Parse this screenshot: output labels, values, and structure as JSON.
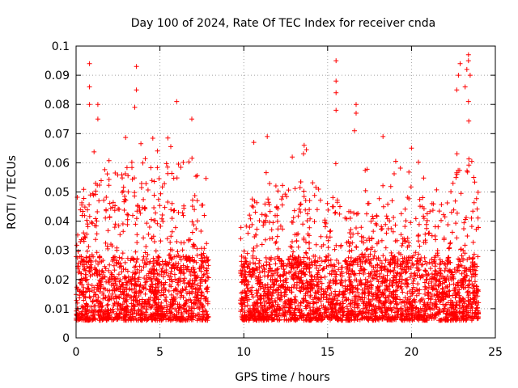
{
  "chart_data": {
    "type": "scatter",
    "title": "Day 100 of 2024, Rate Of TEC Index for receiver cnda",
    "xlabel": "GPS time / hours",
    "ylabel": "ROTI / TECUs",
    "xlim": [
      0,
      25
    ],
    "ylim": [
      0,
      0.1
    ],
    "grid": true,
    "marker": "+",
    "series_color": "#ff0000",
    "x_ticks": [
      "0",
      "5",
      "10",
      "15",
      "20",
      "25"
    ],
    "y_ticks": [
      "0",
      "0.01",
      "0.02",
      "0.03",
      "0.04",
      "0.05",
      "0.06",
      "0.07",
      "0.08",
      "0.09",
      "0.1"
    ],
    "data_gap_hours": [
      7.9,
      9.8
    ],
    "outliers": [
      {
        "x": 0.8,
        "y": 0.094
      },
      {
        "x": 0.8,
        "y": 0.086
      },
      {
        "x": 0.8,
        "y": 0.08
      },
      {
        "x": 1.3,
        "y": 0.08
      },
      {
        "x": 1.3,
        "y": 0.075
      },
      {
        "x": 3.6,
        "y": 0.093
      },
      {
        "x": 3.6,
        "y": 0.085
      },
      {
        "x": 3.5,
        "y": 0.079
      },
      {
        "x": 6.0,
        "y": 0.081
      },
      {
        "x": 6.9,
        "y": 0.075
      },
      {
        "x": 15.5,
        "y": 0.095
      },
      {
        "x": 15.5,
        "y": 0.088
      },
      {
        "x": 15.5,
        "y": 0.084
      },
      {
        "x": 15.5,
        "y": 0.078
      },
      {
        "x": 16.7,
        "y": 0.08
      },
      {
        "x": 16.7,
        "y": 0.077
      },
      {
        "x": 16.6,
        "y": 0.071
      },
      {
        "x": 18.3,
        "y": 0.069
      },
      {
        "x": 22.9,
        "y": 0.094
      },
      {
        "x": 22.8,
        "y": 0.09
      },
      {
        "x": 22.7,
        "y": 0.085
      },
      {
        "x": 23.4,
        "y": 0.097
      },
      {
        "x": 23.4,
        "y": 0.095
      },
      {
        "x": 23.3,
        "y": 0.092
      },
      {
        "x": 23.5,
        "y": 0.09
      },
      {
        "x": 23.2,
        "y": 0.086
      },
      {
        "x": 23.4,
        "y": 0.081
      },
      {
        "x": 10.6,
        "y": 0.067
      },
      {
        "x": 11.4,
        "y": 0.069
      },
      {
        "x": 13.6,
        "y": 0.066
      },
      {
        "x": 20.0,
        "y": 0.065
      }
    ],
    "density_profile_hours": [
      0,
      0.5,
      1.5,
      3.5,
      5.5,
      7.9,
      9.8,
      11,
      13,
      15,
      16.5,
      18,
      20,
      22,
      22.5,
      23.5,
      24
    ],
    "density_profile_typical_max": [
      0.043,
      0.05,
      0.055,
      0.06,
      0.058,
      0.045,
      0.04,
      0.05,
      0.055,
      0.05,
      0.045,
      0.048,
      0.05,
      0.045,
      0.055,
      0.065,
      0.045
    ]
  }
}
